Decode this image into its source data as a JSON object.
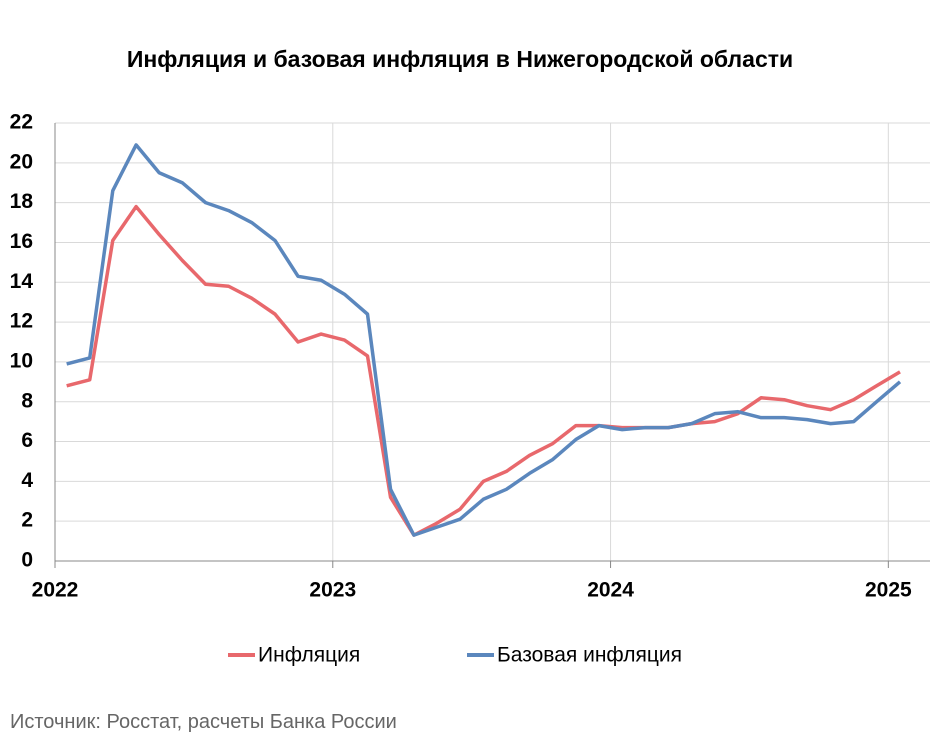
{
  "chart_data": {
    "type": "line",
    "title": "Инфляция и базовая инфляция в Нижегородской области",
    "source": "Источник: Росстат, расчеты Банка России",
    "x": [
      2022.042,
      2022.125,
      2022.208,
      2022.292,
      2022.375,
      2022.458,
      2022.542,
      2022.625,
      2022.708,
      2022.792,
      2022.875,
      2022.958,
      2023.042,
      2023.125,
      2023.208,
      2023.292,
      2023.375,
      2023.458,
      2023.542,
      2023.625,
      2023.708,
      2023.792,
      2023.875,
      2023.958,
      2024.042,
      2024.125,
      2024.208,
      2024.292,
      2024.375,
      2024.458,
      2024.542,
      2024.625,
      2024.708,
      2024.792,
      2024.875,
      2024.958,
      2025.042
    ],
    "series": [
      {
        "name": "Инфляция",
        "color": "#e8686c",
        "values": [
          8.8,
          9.1,
          16.1,
          17.8,
          16.4,
          15.1,
          13.9,
          13.8,
          13.2,
          12.4,
          11.0,
          11.4,
          11.1,
          10.3,
          3.2,
          1.3,
          1.9,
          2.6,
          4.0,
          4.5,
          5.3,
          5.9,
          6.8,
          6.8,
          6.7,
          6.7,
          6.7,
          6.9,
          7.0,
          7.4,
          8.2,
          8.1,
          7.8,
          7.6,
          8.1,
          8.8,
          9.5
        ]
      },
      {
        "name": "Базовая инфляция",
        "color": "#5b87bd",
        "values": [
          9.9,
          10.2,
          18.6,
          20.9,
          19.5,
          19.0,
          18.0,
          17.6,
          17.0,
          16.1,
          14.3,
          14.1,
          13.4,
          12.4,
          3.6,
          1.3,
          1.7,
          2.1,
          3.1,
          3.6,
          4.4,
          5.1,
          6.1,
          6.8,
          6.6,
          6.7,
          6.7,
          6.9,
          7.4,
          7.5,
          7.2,
          7.2,
          7.1,
          6.9,
          7.0,
          8.0,
          9.0
        ]
      }
    ],
    "xlim": [
      2022,
      2025.15
    ],
    "xticks": [
      2022,
      2023,
      2024,
      2025
    ],
    "ylim": [
      0,
      22
    ],
    "yticks": [
      0,
      2,
      4,
      6,
      8,
      10,
      12,
      14,
      16,
      18,
      20,
      22
    ],
    "grid": true,
    "legend": "bottom"
  }
}
